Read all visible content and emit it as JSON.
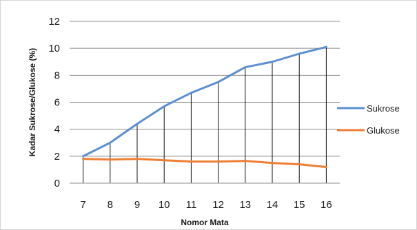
{
  "chart_data": {
    "type": "line",
    "title": "",
    "xlabel": "Nomor Mata",
    "ylabel": "Kadar Sukrose/Glukose (%)",
    "ylim": [
      0,
      12
    ],
    "yticks": [
      0,
      2,
      4,
      6,
      8,
      10,
      12
    ],
    "grid": "horizontal",
    "drop_lines": true,
    "legend_position": "right",
    "x": [
      "7",
      "8",
      "9",
      "10",
      "11",
      "12",
      "13",
      "14",
      "15",
      "16"
    ],
    "series": [
      {
        "name": "Sukrose",
        "color": "#5b8fd0",
        "values": [
          2.0,
          3.0,
          4.4,
          5.7,
          6.7,
          7.5,
          8.6,
          9.0,
          9.6,
          10.1
        ]
      },
      {
        "name": "Glukose",
        "color": "#ee7d31",
        "values": [
          1.8,
          1.75,
          1.8,
          1.7,
          1.6,
          1.6,
          1.65,
          1.5,
          1.4,
          1.2
        ]
      }
    ]
  }
}
